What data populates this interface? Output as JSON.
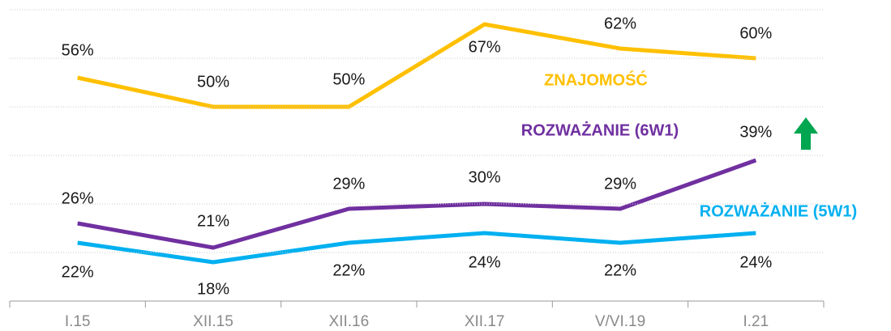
{
  "chart_data": {
    "type": "line",
    "categories": [
      "I.15",
      "XII.15",
      "XII.16",
      "XII.17",
      "V/VI.19",
      "I.21"
    ],
    "series": [
      {
        "name": "ZNAJOMOŚĆ",
        "color": "#FFC000",
        "values": [
          56,
          50,
          50,
          67,
          62,
          60
        ],
        "value_labels": [
          "56%",
          "50%",
          "50%",
          "67%",
          "62%",
          "60%"
        ]
      },
      {
        "name": "ROZWAŻANIE (6W1)",
        "color": "#7030A0",
        "values": [
          26,
          21,
          29,
          30,
          29,
          39
        ],
        "value_labels": [
          "26%",
          "21%",
          "29%",
          "30%",
          "29%",
          "39%"
        ]
      },
      {
        "name": "ROZWAŻANIE (5W1)",
        "color": "#00B0F0",
        "values": [
          22,
          18,
          22,
          24,
          22,
          24
        ],
        "value_labels": [
          "22%",
          "18%",
          "22%",
          "24%",
          "22%",
          "24%"
        ]
      }
    ],
    "ylim": [
      10,
      70
    ],
    "yticks": [
      20,
      30,
      40,
      50,
      60,
      70
    ],
    "grid": true
  }
}
